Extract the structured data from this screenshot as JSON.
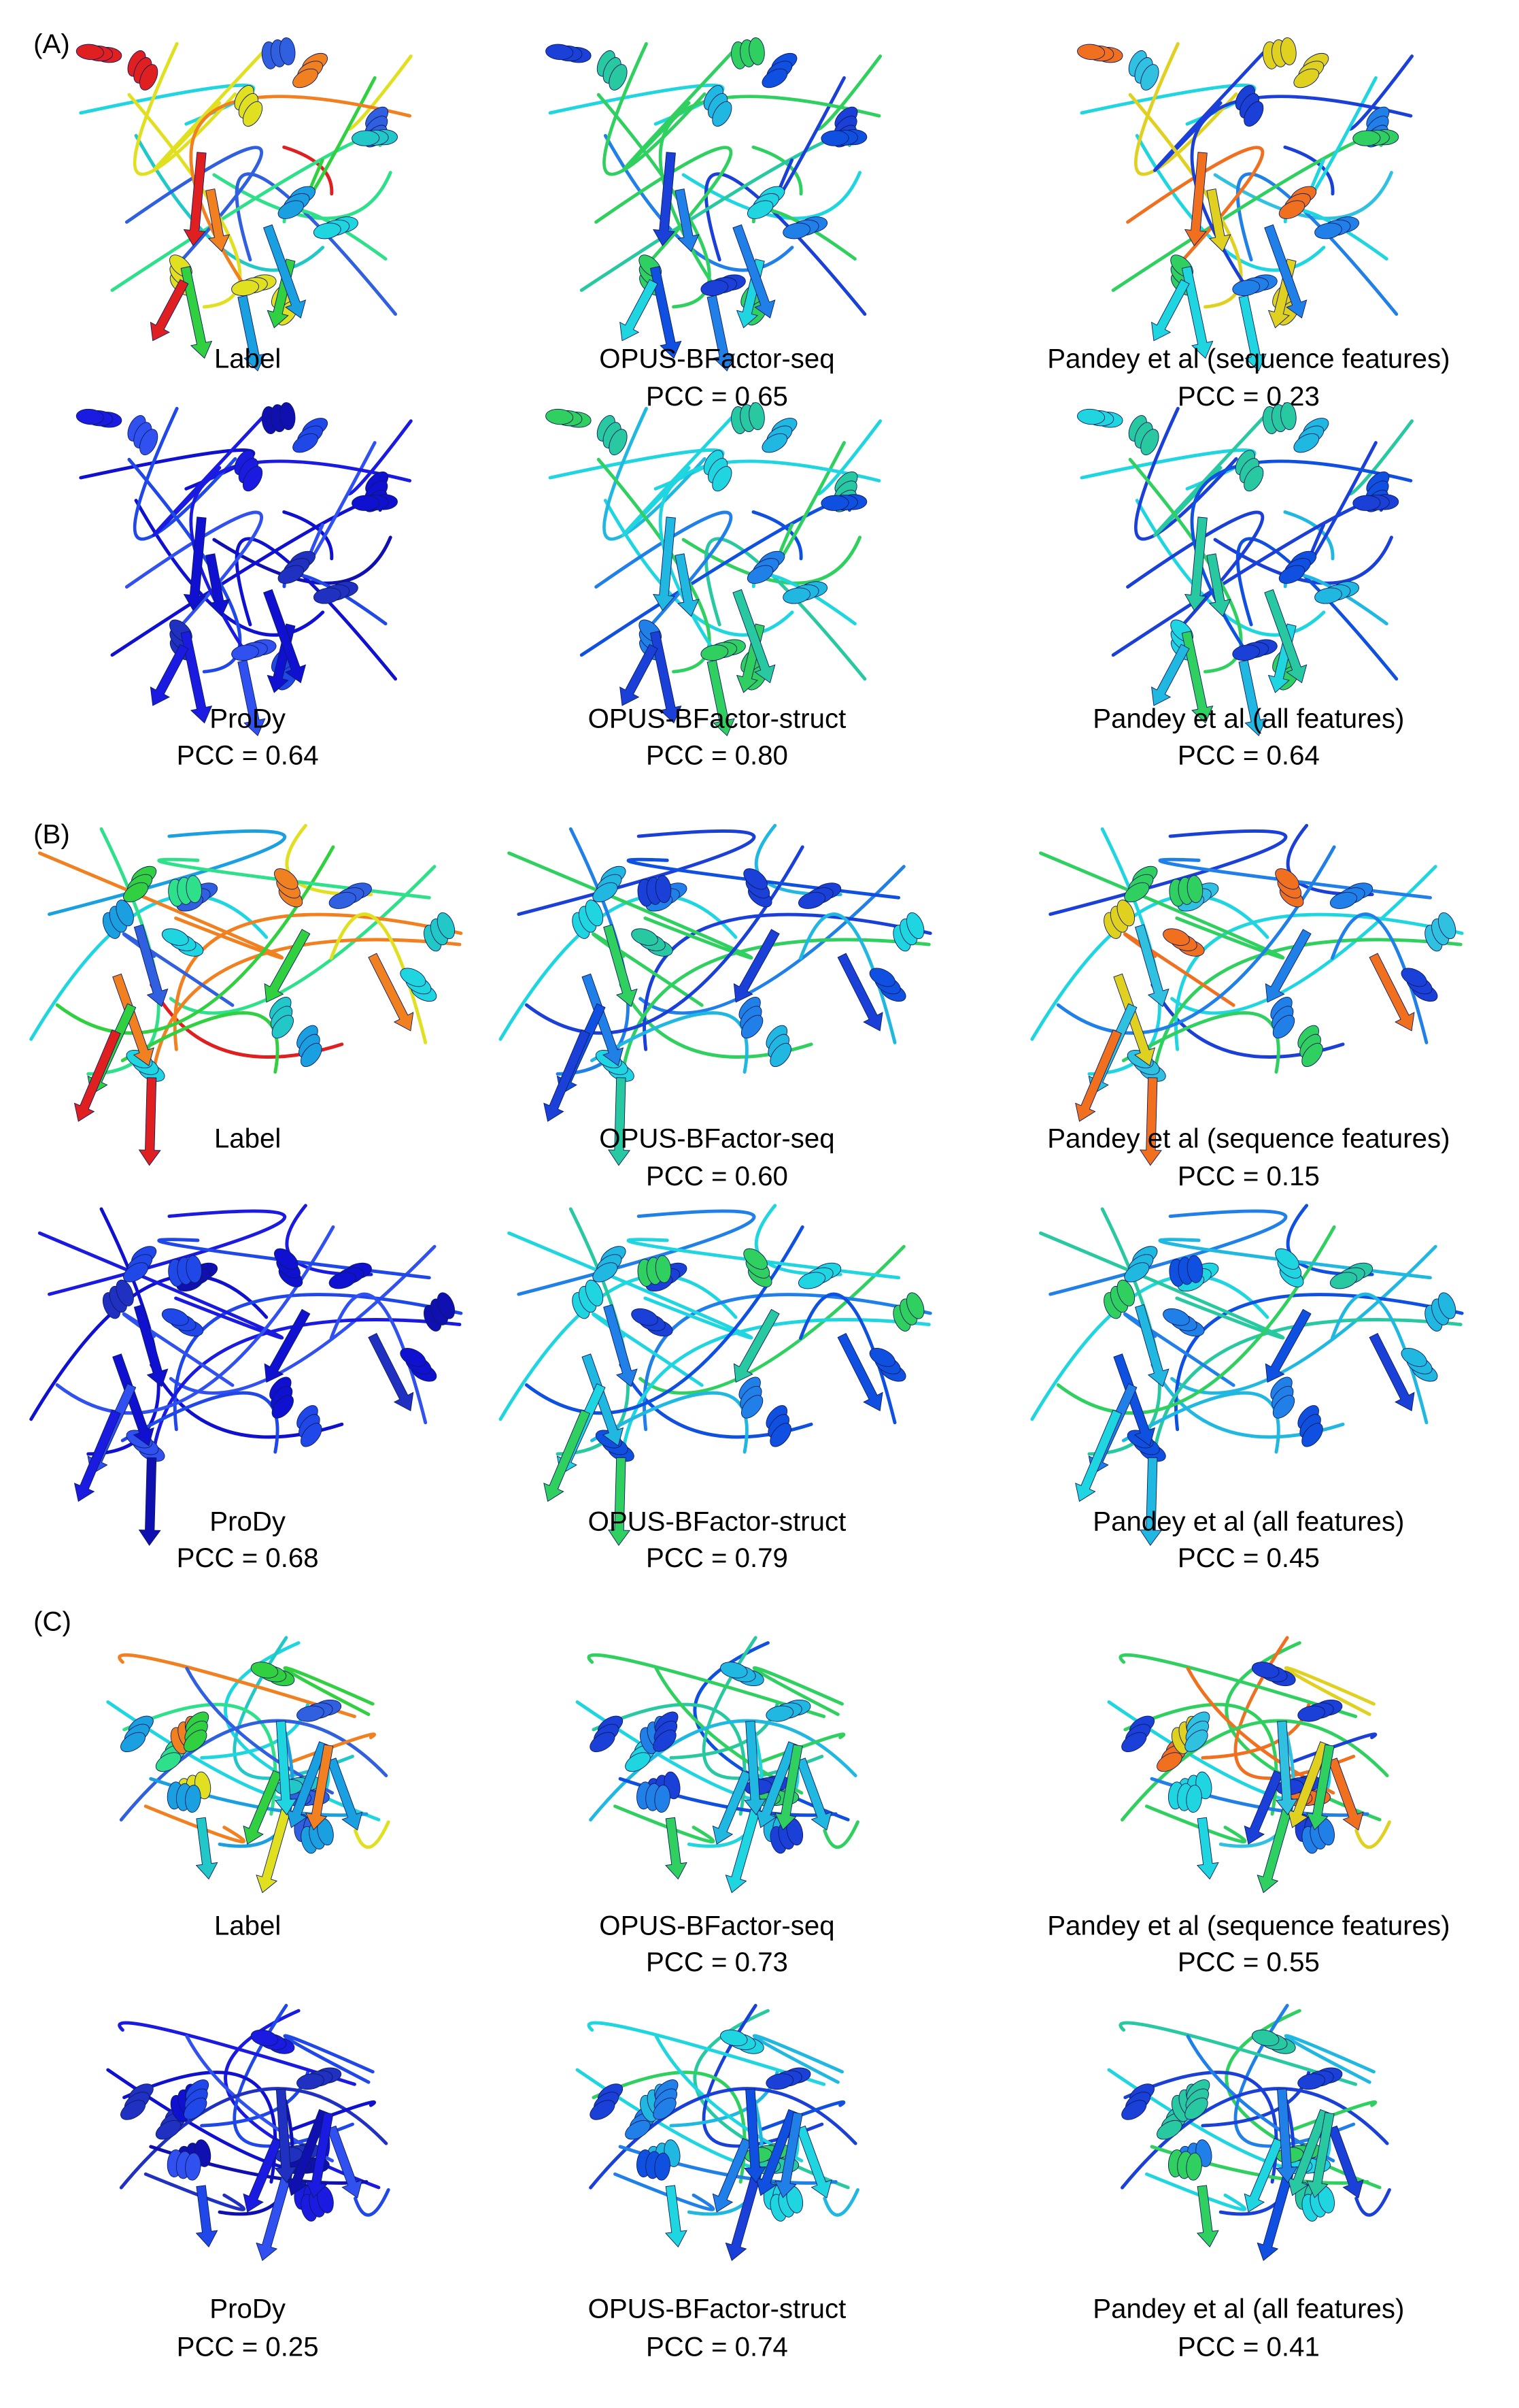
{
  "panels": [
    {
      "label": "(A)",
      "items": [
        {
          "name": "Label"
        },
        {
          "name": "OPUS-BFactor-seq",
          "pcc": "PCC = 0.65"
        },
        {
          "name": "Pandey et al (sequence features)",
          "pcc": "PCC = 0.23"
        },
        {
          "name": "ProDy",
          "pcc": "PCC = 0.64"
        },
        {
          "name": "OPUS-BFactor-struct",
          "pcc": "PCC = 0.80"
        },
        {
          "name": "Pandey et al (all features)",
          "pcc": "PCC = 0.64"
        }
      ]
    },
    {
      "label": "(B)",
      "items": [
        {
          "name": "Label"
        },
        {
          "name": "OPUS-BFactor-seq",
          "pcc": "PCC = 0.60"
        },
        {
          "name": "Pandey et al (sequence features)",
          "pcc": "PCC = 0.15"
        },
        {
          "name": "ProDy",
          "pcc": "PCC = 0.68"
        },
        {
          "name": "OPUS-BFactor-struct",
          "pcc": "PCC = 0.79"
        },
        {
          "name": "Pandey et al (all features)",
          "pcc": "PCC = 0.45"
        }
      ]
    },
    {
      "label": "(C)",
      "items": [
        {
          "name": "Label"
        },
        {
          "name": "OPUS-BFactor-seq",
          "pcc": "PCC = 0.73"
        },
        {
          "name": "Pandey et al (sequence features)",
          "pcc": "PCC = 0.55"
        },
        {
          "name": "ProDy",
          "pcc": "PCC = 0.25"
        },
        {
          "name": "OPUS-BFactor-struct",
          "pcc": "PCC = 0.74"
        },
        {
          "name": "Pandey et al (all features)",
          "pcc": "PCC = 0.41"
        }
      ]
    }
  ]
}
